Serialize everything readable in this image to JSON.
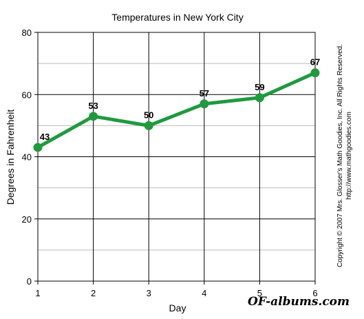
{
  "chart_data": {
    "type": "line",
    "title": "Temperatures in New York City",
    "xlabel": "Day",
    "ylabel": "Degrees in Fahrenheit",
    "x": [
      1,
      2,
      3,
      4,
      5,
      6
    ],
    "xlim": [
      1,
      6
    ],
    "ylim": [
      0,
      80
    ],
    "yticks": [
      0,
      20,
      40,
      60,
      80
    ],
    "xticks": [
      1,
      2,
      3,
      4,
      5,
      6
    ],
    "grid": true,
    "series": [
      {
        "values": [
          43,
          53,
          50,
          57,
          59,
          67
        ],
        "color": "#1f9a3e"
      }
    ]
  },
  "copyright": {
    "line1": "Copyright © 2007 Mrs. Glosser's Math Goodies, Inc. All Rights Reserved.",
    "line2": "http://www.mathgoodies.com"
  },
  "watermark": "OF-albums.com"
}
